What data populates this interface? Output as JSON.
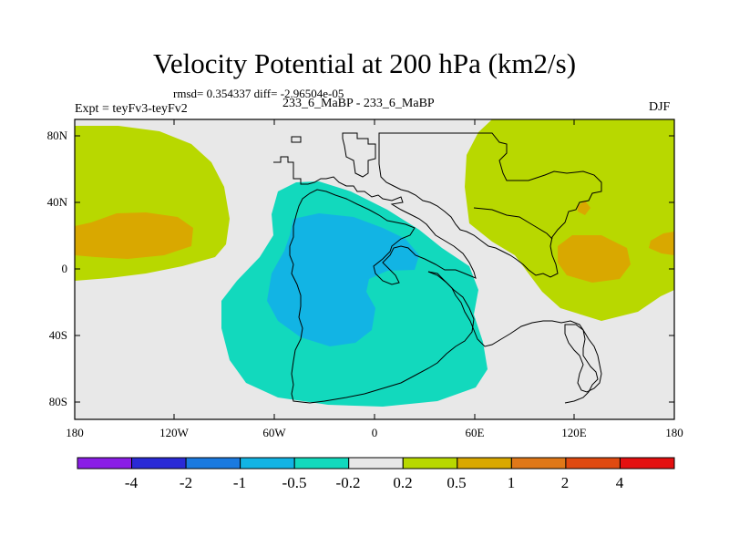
{
  "title": "Velocity Potential at 200 hPa (km2/s)",
  "stats": "rmsd= 0.354337 diff= -2.96504e-05",
  "expt": "Expt = teyFv3-teyFv2",
  "subtitle": "233_6_MaBP - 233_6_MaBP",
  "season": "DJF",
  "y_ticks": [
    "80N",
    "40N",
    "0",
    "40S",
    "80S"
  ],
  "x_ticks": [
    "180",
    "120W",
    "60W",
    "0",
    "60E",
    "120E",
    "180"
  ],
  "colorbar": {
    "labels": [
      "-4",
      "-2",
      "-1",
      "-0.5",
      "-0.2",
      "0.2",
      "0.5",
      "1",
      "2",
      "4"
    ],
    "colors": [
      "#8a1ee6",
      "#2a2ad6",
      "#1a7ae0",
      "#12b4e4",
      "#12d9bd",
      "#e8e8e8",
      "#b8d800",
      "#d9a800",
      "#e07818",
      "#e04a10",
      "#e41010"
    ]
  },
  "field_colors": {
    "background": "#e8e8e8",
    "pos_low": "#b8d800",
    "pos_mid": "#d9a800",
    "neg_low": "#12d9bd",
    "neg_mid": "#12b4e4"
  }
}
